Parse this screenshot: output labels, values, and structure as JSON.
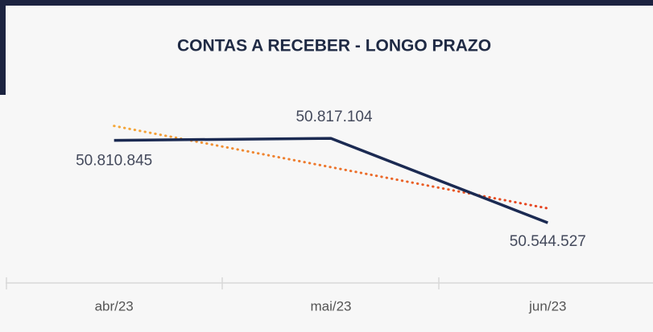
{
  "chart_data": {
    "type": "line",
    "title": "CONTAS A RECEBER - LONGO PRAZO",
    "categories": [
      "abr/23",
      "mai/23",
      "jun/23"
    ],
    "values": [
      50810845,
      50817104,
      50544527
    ],
    "value_labels": [
      "50.810.845",
      "50.817.104",
      "50.544.527"
    ],
    "color": "#1b2a52",
    "trendline": true,
    "ylim": [
      50350000,
      50950000
    ]
  }
}
